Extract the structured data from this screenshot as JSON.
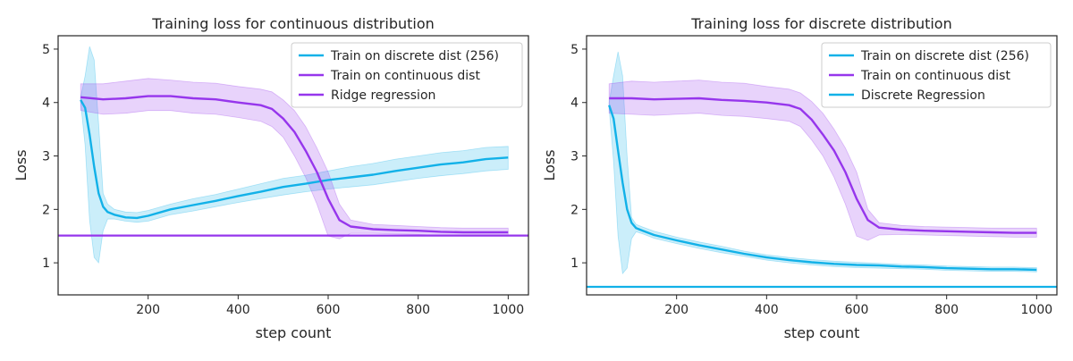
{
  "chart_data": [
    {
      "type": "line",
      "title": "Training loss for continuous distribution",
      "xlabel": "step count",
      "ylabel": "Loss",
      "xlim": [
        0,
        1045
      ],
      "ylim": [
        0.4,
        5.25
      ],
      "xticks": [
        200,
        400,
        600,
        800,
        1000
      ],
      "yticks": [
        1,
        2,
        3,
        4,
        5
      ],
      "legend_position": "top-right",
      "grid": false,
      "series": [
        {
          "name": "Train on discrete dist (256)",
          "color": "#12b1e8",
          "x": [
            50,
            60,
            70,
            80,
            90,
            100,
            110,
            125,
            150,
            175,
            200,
            250,
            300,
            350,
            400,
            450,
            500,
            550,
            600,
            650,
            700,
            750,
            800,
            850,
            900,
            950,
            1000
          ],
          "y": [
            4.05,
            3.9,
            3.4,
            2.8,
            2.3,
            2.05,
            1.95,
            1.9,
            1.85,
            1.84,
            1.88,
            2.0,
            2.08,
            2.16,
            2.25,
            2.33,
            2.42,
            2.48,
            2.55,
            2.6,
            2.65,
            2.72,
            2.78,
            2.84,
            2.88,
            2.94,
            2.97
          ],
          "upper": [
            4.1,
            4.5,
            5.05,
            4.8,
            3.6,
            2.3,
            2.1,
            2.0,
            1.95,
            1.94,
            1.98,
            2.1,
            2.2,
            2.28,
            2.38,
            2.48,
            2.58,
            2.64,
            2.72,
            2.8,
            2.86,
            2.94,
            3.0,
            3.06,
            3.1,
            3.16,
            3.18
          ],
          "lower": [
            4.0,
            3.2,
            1.8,
            1.1,
            1.0,
            1.6,
            1.82,
            1.82,
            1.78,
            1.76,
            1.78,
            1.9,
            1.97,
            2.05,
            2.13,
            2.2,
            2.27,
            2.33,
            2.38,
            2.42,
            2.46,
            2.52,
            2.58,
            2.63,
            2.67,
            2.72,
            2.75
          ]
        },
        {
          "name": "Train on continuous dist",
          "color": "#9636ec",
          "x": [
            50,
            100,
            150,
            200,
            250,
            300,
            350,
            400,
            450,
            475,
            500,
            525,
            550,
            575,
            600,
            625,
            650,
            700,
            750,
            800,
            850,
            900,
            950,
            1000
          ],
          "y": [
            4.1,
            4.06,
            4.08,
            4.12,
            4.12,
            4.08,
            4.06,
            4.0,
            3.95,
            3.88,
            3.7,
            3.45,
            3.1,
            2.7,
            2.2,
            1.8,
            1.68,
            1.63,
            1.61,
            1.6,
            1.58,
            1.57,
            1.57,
            1.57
          ],
          "upper": [
            4.35,
            4.35,
            4.4,
            4.45,
            4.42,
            4.38,
            4.36,
            4.3,
            4.25,
            4.2,
            4.05,
            3.85,
            3.55,
            3.15,
            2.7,
            2.1,
            1.8,
            1.72,
            1.7,
            1.68,
            1.66,
            1.65,
            1.65,
            1.65
          ],
          "lower": [
            3.85,
            3.78,
            3.8,
            3.85,
            3.85,
            3.8,
            3.78,
            3.72,
            3.65,
            3.55,
            3.35,
            3.0,
            2.6,
            2.1,
            1.5,
            1.45,
            1.55,
            1.55,
            1.54,
            1.53,
            1.51,
            1.5,
            1.5,
            1.5
          ]
        },
        {
          "name": "Ridge regression",
          "color": "#9636ec",
          "kind": "hline",
          "y": 1.51
        }
      ]
    },
    {
      "type": "line",
      "title": "Training loss for discrete distribution",
      "xlabel": "step count",
      "ylabel": "Loss",
      "xlim": [
        0,
        1045
      ],
      "ylim": [
        0.4,
        5.25
      ],
      "xticks": [
        200,
        400,
        600,
        800,
        1000
      ],
      "yticks": [
        1,
        2,
        3,
        4,
        5
      ],
      "legend_position": "top-right",
      "grid": false,
      "series": [
        {
          "name": "Train on discrete dist (256)",
          "color": "#12b1e8",
          "x": [
            50,
            60,
            70,
            80,
            90,
            100,
            110,
            125,
            150,
            200,
            250,
            300,
            350,
            400,
            450,
            500,
            550,
            600,
            650,
            700,
            750,
            800,
            850,
            900,
            950,
            1000
          ],
          "y": [
            3.95,
            3.7,
            3.1,
            2.5,
            2.0,
            1.75,
            1.65,
            1.6,
            1.52,
            1.42,
            1.33,
            1.25,
            1.17,
            1.1,
            1.05,
            1.01,
            0.98,
            0.96,
            0.95,
            0.93,
            0.92,
            0.9,
            0.89,
            0.88,
            0.88,
            0.87
          ],
          "upper": [
            4.0,
            4.5,
            4.95,
            4.5,
            3.0,
            1.85,
            1.72,
            1.67,
            1.59,
            1.48,
            1.39,
            1.31,
            1.22,
            1.15,
            1.1,
            1.06,
            1.03,
            1.01,
            0.99,
            0.97,
            0.96,
            0.94,
            0.93,
            0.92,
            0.92,
            0.91
          ],
          "lower": [
            3.9,
            2.9,
            1.5,
            0.8,
            0.9,
            1.45,
            1.58,
            1.54,
            1.46,
            1.36,
            1.27,
            1.19,
            1.12,
            1.05,
            1.0,
            0.96,
            0.93,
            0.91,
            0.9,
            0.89,
            0.88,
            0.86,
            0.85,
            0.84,
            0.84,
            0.83
          ]
        },
        {
          "name": "Train on continuous dist",
          "color": "#9636ec",
          "x": [
            50,
            100,
            150,
            200,
            250,
            300,
            350,
            400,
            450,
            475,
            500,
            525,
            550,
            575,
            600,
            625,
            650,
            700,
            750,
            800,
            850,
            900,
            950,
            1000
          ],
          "y": [
            4.08,
            4.08,
            4.06,
            4.07,
            4.08,
            4.05,
            4.03,
            4.0,
            3.95,
            3.88,
            3.68,
            3.4,
            3.1,
            2.7,
            2.2,
            1.8,
            1.66,
            1.62,
            1.6,
            1.59,
            1.58,
            1.57,
            1.56,
            1.56
          ],
          "upper": [
            4.35,
            4.4,
            4.38,
            4.4,
            4.42,
            4.38,
            4.36,
            4.3,
            4.25,
            4.18,
            4.02,
            3.8,
            3.5,
            3.15,
            2.7,
            2.0,
            1.75,
            1.7,
            1.68,
            1.67,
            1.66,
            1.65,
            1.65,
            1.65
          ],
          "lower": [
            3.8,
            3.78,
            3.76,
            3.78,
            3.8,
            3.76,
            3.74,
            3.7,
            3.65,
            3.55,
            3.3,
            3.0,
            2.6,
            2.1,
            1.5,
            1.42,
            1.52,
            1.53,
            1.52,
            1.51,
            1.5,
            1.49,
            1.48,
            1.48
          ]
        },
        {
          "name": "Discrete Regression",
          "color": "#12b1e8",
          "kind": "hline",
          "y": 0.55
        }
      ]
    }
  ]
}
